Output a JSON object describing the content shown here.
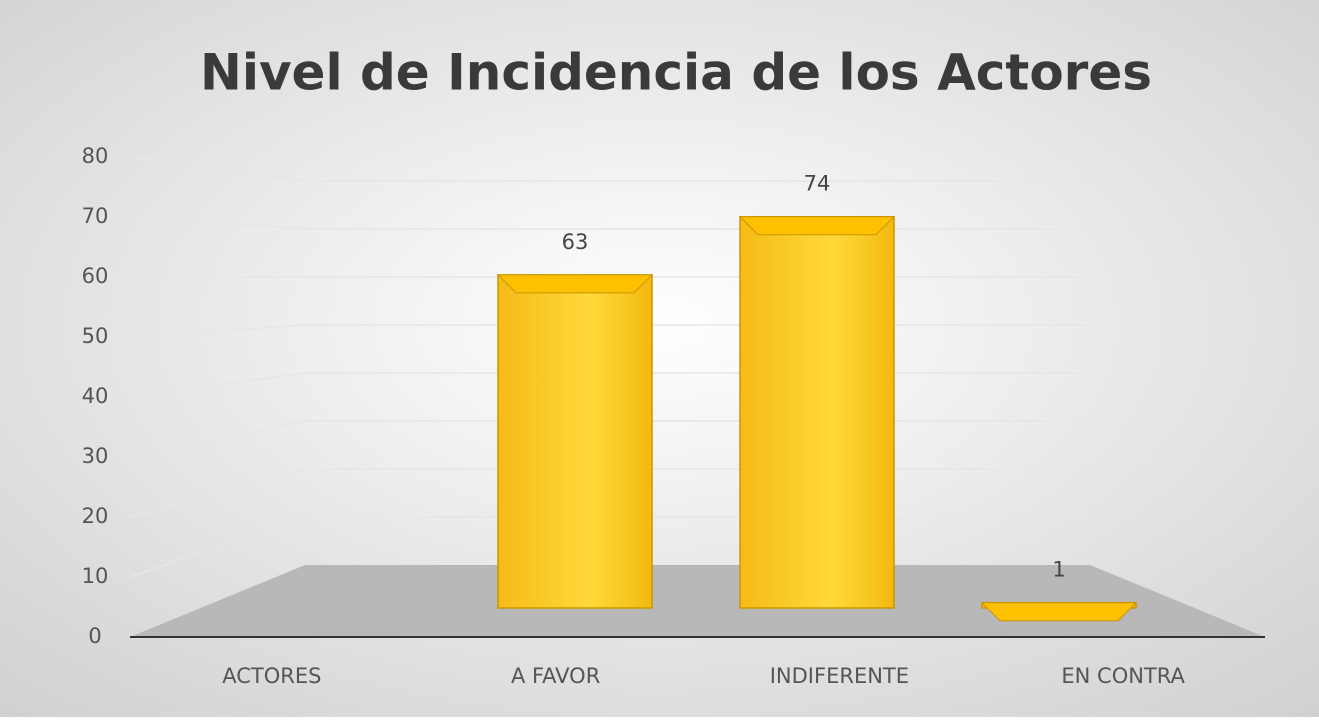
{
  "chart_data": {
    "type": "bar3d",
    "title": "Nivel de Incidencia de los Actores",
    "categories": [
      "ACTORES",
      "A FAVOR",
      "INDIFERENTE",
      "EN CONTRA"
    ],
    "values": [
      null,
      63,
      74,
      1
    ],
    "color": "#ffc000",
    "ylim": [
      0,
      80
    ],
    "yticks": [
      0,
      10,
      20,
      30,
      40,
      50,
      60,
      70,
      80
    ],
    "grid": true
  }
}
